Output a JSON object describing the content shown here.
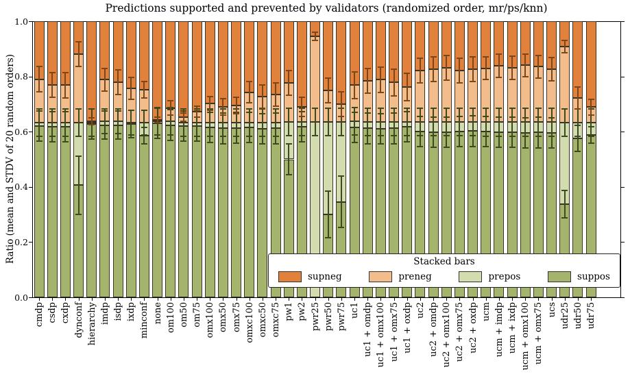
{
  "title": "Predictions supported and prevented by validators (randomized order, mr/ps/knn)",
  "ylabel": "Ratio (mean and STDV of 20 random orders)",
  "legend": {
    "title": "Stacked bars",
    "entries": [
      {
        "label": "supneg",
        "color": "#E2813B"
      },
      {
        "label": "preneg",
        "color": "#F3BD8B"
      },
      {
        "label": "prepos",
        "color": "#D2DCAE"
      },
      {
        "label": "suppos",
        "color": "#A5B46C"
      }
    ]
  },
  "y_ticks": [
    {
      "value": 0.0,
      "label": "0.0"
    },
    {
      "value": 0.2,
      "label": "0.2"
    },
    {
      "value": 0.4,
      "label": "0.4"
    },
    {
      "value": 0.6,
      "label": "0.6"
    },
    {
      "value": 0.8,
      "label": "0.8"
    },
    {
      "value": 1.0,
      "label": "1.0"
    }
  ],
  "chart_data": {
    "type": "bar",
    "stacked": true,
    "grid": false,
    "ylim": [
      0.0,
      1.0
    ],
    "legend_position": "lower center inside plot",
    "stack_order_bottom_to_top": [
      "suppos",
      "prepos",
      "preneg",
      "supneg"
    ],
    "colors": {
      "supneg": "#E2813B",
      "preneg": "#F3BD8B",
      "prepos": "#D2DCAE",
      "suppos": "#A5B46C",
      "bar_edge": "#383325",
      "error_bar_green_boundaries": "#3D4A1E",
      "error_bar_orange_boundary": "#7B4719"
    },
    "note": "Each bar totals 1.0. suppos_top/prepos_top/preneg_top are cumulative boundaries; segment sizes: suppos=suppos_top, prepos=prepos_top-suppos_top, preneg=preneg_top-prepos_top, supneg=1-preneg_top. err_* are STDV half-lengths of the error bars drawn at each boundary.",
    "categories": [
      "cmdp",
      "csdp",
      "cxdp",
      "dynconf",
      "hierarchy",
      "imdp",
      "isdp",
      "ixdp",
      "minconf",
      "none",
      "om100",
      "om50",
      "om75",
      "omx100",
      "omx50",
      "omx75",
      "omxc100",
      "omxc50",
      "omxc75",
      "pw1",
      "pw2",
      "pwr25",
      "pwr50",
      "pwr75",
      "uc1",
      "uc1 + omdp",
      "uc1 + omx100",
      "uc1 + omx75",
      "uc1 + oxdp",
      "uc2",
      "uc2 + omdp",
      "uc2 + omx100",
      "uc2 + omx75",
      "uc2 + oxdp",
      "ucm",
      "ucm + imdp",
      "ucm + ixdp",
      "ucm + omx100",
      "ucm + omx75",
      "ucs",
      "udr25",
      "udr50",
      "udr75"
    ],
    "bars": [
      {
        "label": "cmdp",
        "suppos_top": 0.62,
        "prepos_top": 0.633,
        "preneg_top": 0.79,
        "err_suppos": 0.055,
        "err_prepos": 0.05,
        "err_preneg": 0.045
      },
      {
        "label": "csdp",
        "suppos_top": 0.618,
        "prepos_top": 0.633,
        "preneg_top": 0.77,
        "err_suppos": 0.055,
        "err_prepos": 0.05,
        "err_preneg": 0.045
      },
      {
        "label": "cxdp",
        "suppos_top": 0.618,
        "prepos_top": 0.633,
        "preneg_top": 0.768,
        "err_suppos": 0.055,
        "err_prepos": 0.05,
        "err_preneg": 0.045
      },
      {
        "label": "dynconf",
        "suppos_top": 0.406,
        "prepos_top": 0.633,
        "preneg_top": 0.88,
        "err_suppos": 0.105,
        "err_prepos": 0.05,
        "err_preneg": 0.045
      },
      {
        "label": "hierarchy",
        "suppos_top": 0.628,
        "prepos_top": 0.632,
        "preneg_top": 0.637,
        "err_suppos": 0.055,
        "err_prepos": 0.05,
        "err_preneg": 0.012
      },
      {
        "label": "imdp",
        "suppos_top": 0.624,
        "prepos_top": 0.638,
        "preneg_top": 0.788,
        "err_suppos": 0.05,
        "err_prepos": 0.045,
        "err_preneg": 0.04
      },
      {
        "label": "isdp",
        "suppos_top": 0.624,
        "prepos_top": 0.638,
        "preneg_top": 0.78,
        "err_suppos": 0.05,
        "err_prepos": 0.045,
        "err_preneg": 0.045
      },
      {
        "label": "ixdp",
        "suppos_top": 0.627,
        "prepos_top": 0.633,
        "preneg_top": 0.756,
        "err_suppos": 0.05,
        "err_prepos": 0.045,
        "err_preneg": 0.04
      },
      {
        "label": "minconf",
        "suppos_top": 0.586,
        "prepos_top": 0.633,
        "preneg_top": 0.752,
        "err_suppos": 0.03,
        "err_prepos": 0.045,
        "err_preneg": 0.03
      },
      {
        "label": "none",
        "suppos_top": 0.63,
        "prepos_top": 0.638,
        "preneg_top": 0.642,
        "err_suppos": 0.055,
        "err_prepos": 0.05,
        "err_preneg": 0.01
      },
      {
        "label": "om100",
        "suppos_top": 0.624,
        "prepos_top": 0.638,
        "preneg_top": 0.686,
        "err_suppos": 0.055,
        "err_prepos": 0.05,
        "err_preneg": 0.025
      },
      {
        "label": "om50",
        "suppos_top": 0.62,
        "prepos_top": 0.633,
        "preneg_top": 0.652,
        "err_suppos": 0.055,
        "err_prepos": 0.05,
        "err_preneg": 0.015
      },
      {
        "label": "om75",
        "suppos_top": 0.62,
        "prepos_top": 0.633,
        "preneg_top": 0.672,
        "err_suppos": 0.055,
        "err_prepos": 0.05,
        "err_preneg": 0.02
      },
      {
        "label": "omx100",
        "suppos_top": 0.616,
        "prepos_top": 0.633,
        "preneg_top": 0.703,
        "err_suppos": 0.055,
        "err_prepos": 0.05,
        "err_preneg": 0.025
      },
      {
        "label": "omx50",
        "suppos_top": 0.612,
        "prepos_top": 0.633,
        "preneg_top": 0.689,
        "err_suppos": 0.055,
        "err_prepos": 0.05,
        "err_preneg": 0.03
      },
      {
        "label": "omx75",
        "suppos_top": 0.614,
        "prepos_top": 0.633,
        "preneg_top": 0.695,
        "err_suppos": 0.055,
        "err_prepos": 0.05,
        "err_preneg": 0.03
      },
      {
        "label": "omxc100",
        "suppos_top": 0.616,
        "prepos_top": 0.633,
        "preneg_top": 0.743,
        "err_suppos": 0.055,
        "err_prepos": 0.05,
        "err_preneg": 0.038
      },
      {
        "label": "omxc50",
        "suppos_top": 0.61,
        "prepos_top": 0.633,
        "preneg_top": 0.726,
        "err_suppos": 0.055,
        "err_prepos": 0.05,
        "err_preneg": 0.042
      },
      {
        "label": "omxc75",
        "suppos_top": 0.612,
        "prepos_top": 0.633,
        "preneg_top": 0.734,
        "err_suppos": 0.055,
        "err_prepos": 0.05,
        "err_preneg": 0.042
      },
      {
        "label": "pw1",
        "suppos_top": 0.5,
        "prepos_top": 0.635,
        "preneg_top": 0.776,
        "err_suppos": 0.055,
        "err_prepos": 0.05,
        "err_preneg": 0.045
      },
      {
        "label": "pw2",
        "suppos_top": 0.618,
        "prepos_top": 0.635,
        "preneg_top": 0.69,
        "err_suppos": 0.055,
        "err_prepos": 0.05,
        "err_preneg": 0.035
      },
      {
        "label": "pwr25",
        "suppos_top": 0.0,
        "prepos_top": 0.635,
        "preneg_top": 0.945,
        "err_suppos": 0.0,
        "err_prepos": 0.05,
        "err_preneg": 0.015
      },
      {
        "label": "pwr50",
        "suppos_top": 0.3,
        "prepos_top": 0.635,
        "preneg_top": 0.75,
        "err_suppos": 0.085,
        "err_prepos": 0.05,
        "err_preneg": 0.045
      },
      {
        "label": "pwr75",
        "suppos_top": 0.346,
        "prepos_top": 0.635,
        "preneg_top": 0.7,
        "err_suppos": 0.093,
        "err_prepos": 0.05,
        "err_preneg": 0.045
      },
      {
        "label": "uc1",
        "suppos_top": 0.615,
        "prepos_top": 0.637,
        "preneg_top": 0.768,
        "err_suppos": 0.055,
        "err_prepos": 0.05,
        "err_preneg": 0.048
      },
      {
        "label": "uc1 + omdp",
        "suppos_top": 0.612,
        "prepos_top": 0.635,
        "preneg_top": 0.784,
        "err_suppos": 0.055,
        "err_prepos": 0.05,
        "err_preneg": 0.045
      },
      {
        "label": "uc1 + omx100",
        "suppos_top": 0.61,
        "prepos_top": 0.635,
        "preneg_top": 0.788,
        "err_suppos": 0.055,
        "err_prepos": 0.05,
        "err_preneg": 0.045
      },
      {
        "label": "uc1 + omx75",
        "suppos_top": 0.612,
        "prepos_top": 0.635,
        "preneg_top": 0.778,
        "err_suppos": 0.055,
        "err_prepos": 0.05,
        "err_preneg": 0.048
      },
      {
        "label": "uc1 + oxdp",
        "suppos_top": 0.618,
        "prepos_top": 0.635,
        "preneg_top": 0.762,
        "err_suppos": 0.055,
        "err_prepos": 0.05,
        "err_preneg": 0.05
      },
      {
        "label": "uc2",
        "suppos_top": 0.6,
        "prepos_top": 0.635,
        "preneg_top": 0.821,
        "err_suppos": 0.055,
        "err_prepos": 0.05,
        "err_preneg": 0.045
      },
      {
        "label": "uc2 + omdp",
        "suppos_top": 0.598,
        "prepos_top": 0.635,
        "preneg_top": 0.826,
        "err_suppos": 0.055,
        "err_prepos": 0.05,
        "err_preneg": 0.045
      },
      {
        "label": "uc2 + omx100",
        "suppos_top": 0.598,
        "prepos_top": 0.635,
        "preneg_top": 0.831,
        "err_suppos": 0.055,
        "err_prepos": 0.05,
        "err_preneg": 0.045
      },
      {
        "label": "uc2 + omx75",
        "suppos_top": 0.6,
        "prepos_top": 0.635,
        "preneg_top": 0.822,
        "err_suppos": 0.055,
        "err_prepos": 0.05,
        "err_preneg": 0.045
      },
      {
        "label": "uc2 + oxdp",
        "suppos_top": 0.602,
        "prepos_top": 0.635,
        "preneg_top": 0.826,
        "err_suppos": 0.055,
        "err_prepos": 0.05,
        "err_preneg": 0.045
      },
      {
        "label": "ucm",
        "suppos_top": 0.6,
        "prepos_top": 0.634,
        "preneg_top": 0.83,
        "err_suppos": 0.055,
        "err_prepos": 0.05,
        "err_preneg": 0.042
      },
      {
        "label": "ucm + imdp",
        "suppos_top": 0.598,
        "prepos_top": 0.634,
        "preneg_top": 0.838,
        "err_suppos": 0.055,
        "err_prepos": 0.05,
        "err_preneg": 0.042
      },
      {
        "label": "ucm + ixdp",
        "suppos_top": 0.598,
        "prepos_top": 0.634,
        "preneg_top": 0.832,
        "err_suppos": 0.055,
        "err_prepos": 0.05,
        "err_preneg": 0.042
      },
      {
        "label": "ucm + omx100",
        "suppos_top": 0.596,
        "prepos_top": 0.634,
        "preneg_top": 0.84,
        "err_suppos": 0.055,
        "err_prepos": 0.05,
        "err_preneg": 0.04
      },
      {
        "label": "ucm + omx75",
        "suppos_top": 0.597,
        "prepos_top": 0.634,
        "preneg_top": 0.835,
        "err_suppos": 0.055,
        "err_prepos": 0.05,
        "err_preneg": 0.042
      },
      {
        "label": "ucs",
        "suppos_top": 0.595,
        "prepos_top": 0.634,
        "preneg_top": 0.827,
        "err_suppos": 0.055,
        "err_prepos": 0.05,
        "err_preneg": 0.042
      },
      {
        "label": "udr25",
        "suppos_top": 0.337,
        "prepos_top": 0.633,
        "preneg_top": 0.908,
        "err_suppos": 0.05,
        "err_prepos": 0.05,
        "err_preneg": 0.022
      },
      {
        "label": "udr50",
        "suppos_top": 0.576,
        "prepos_top": 0.633,
        "preneg_top": 0.722,
        "err_suppos": 0.047,
        "err_prepos": 0.05,
        "err_preneg": 0.04
      },
      {
        "label": "udr75",
        "suppos_top": 0.589,
        "prepos_top": 0.633,
        "preneg_top": 0.689,
        "err_suppos": 0.03,
        "err_prepos": 0.05,
        "err_preneg": 0.028
      }
    ]
  }
}
